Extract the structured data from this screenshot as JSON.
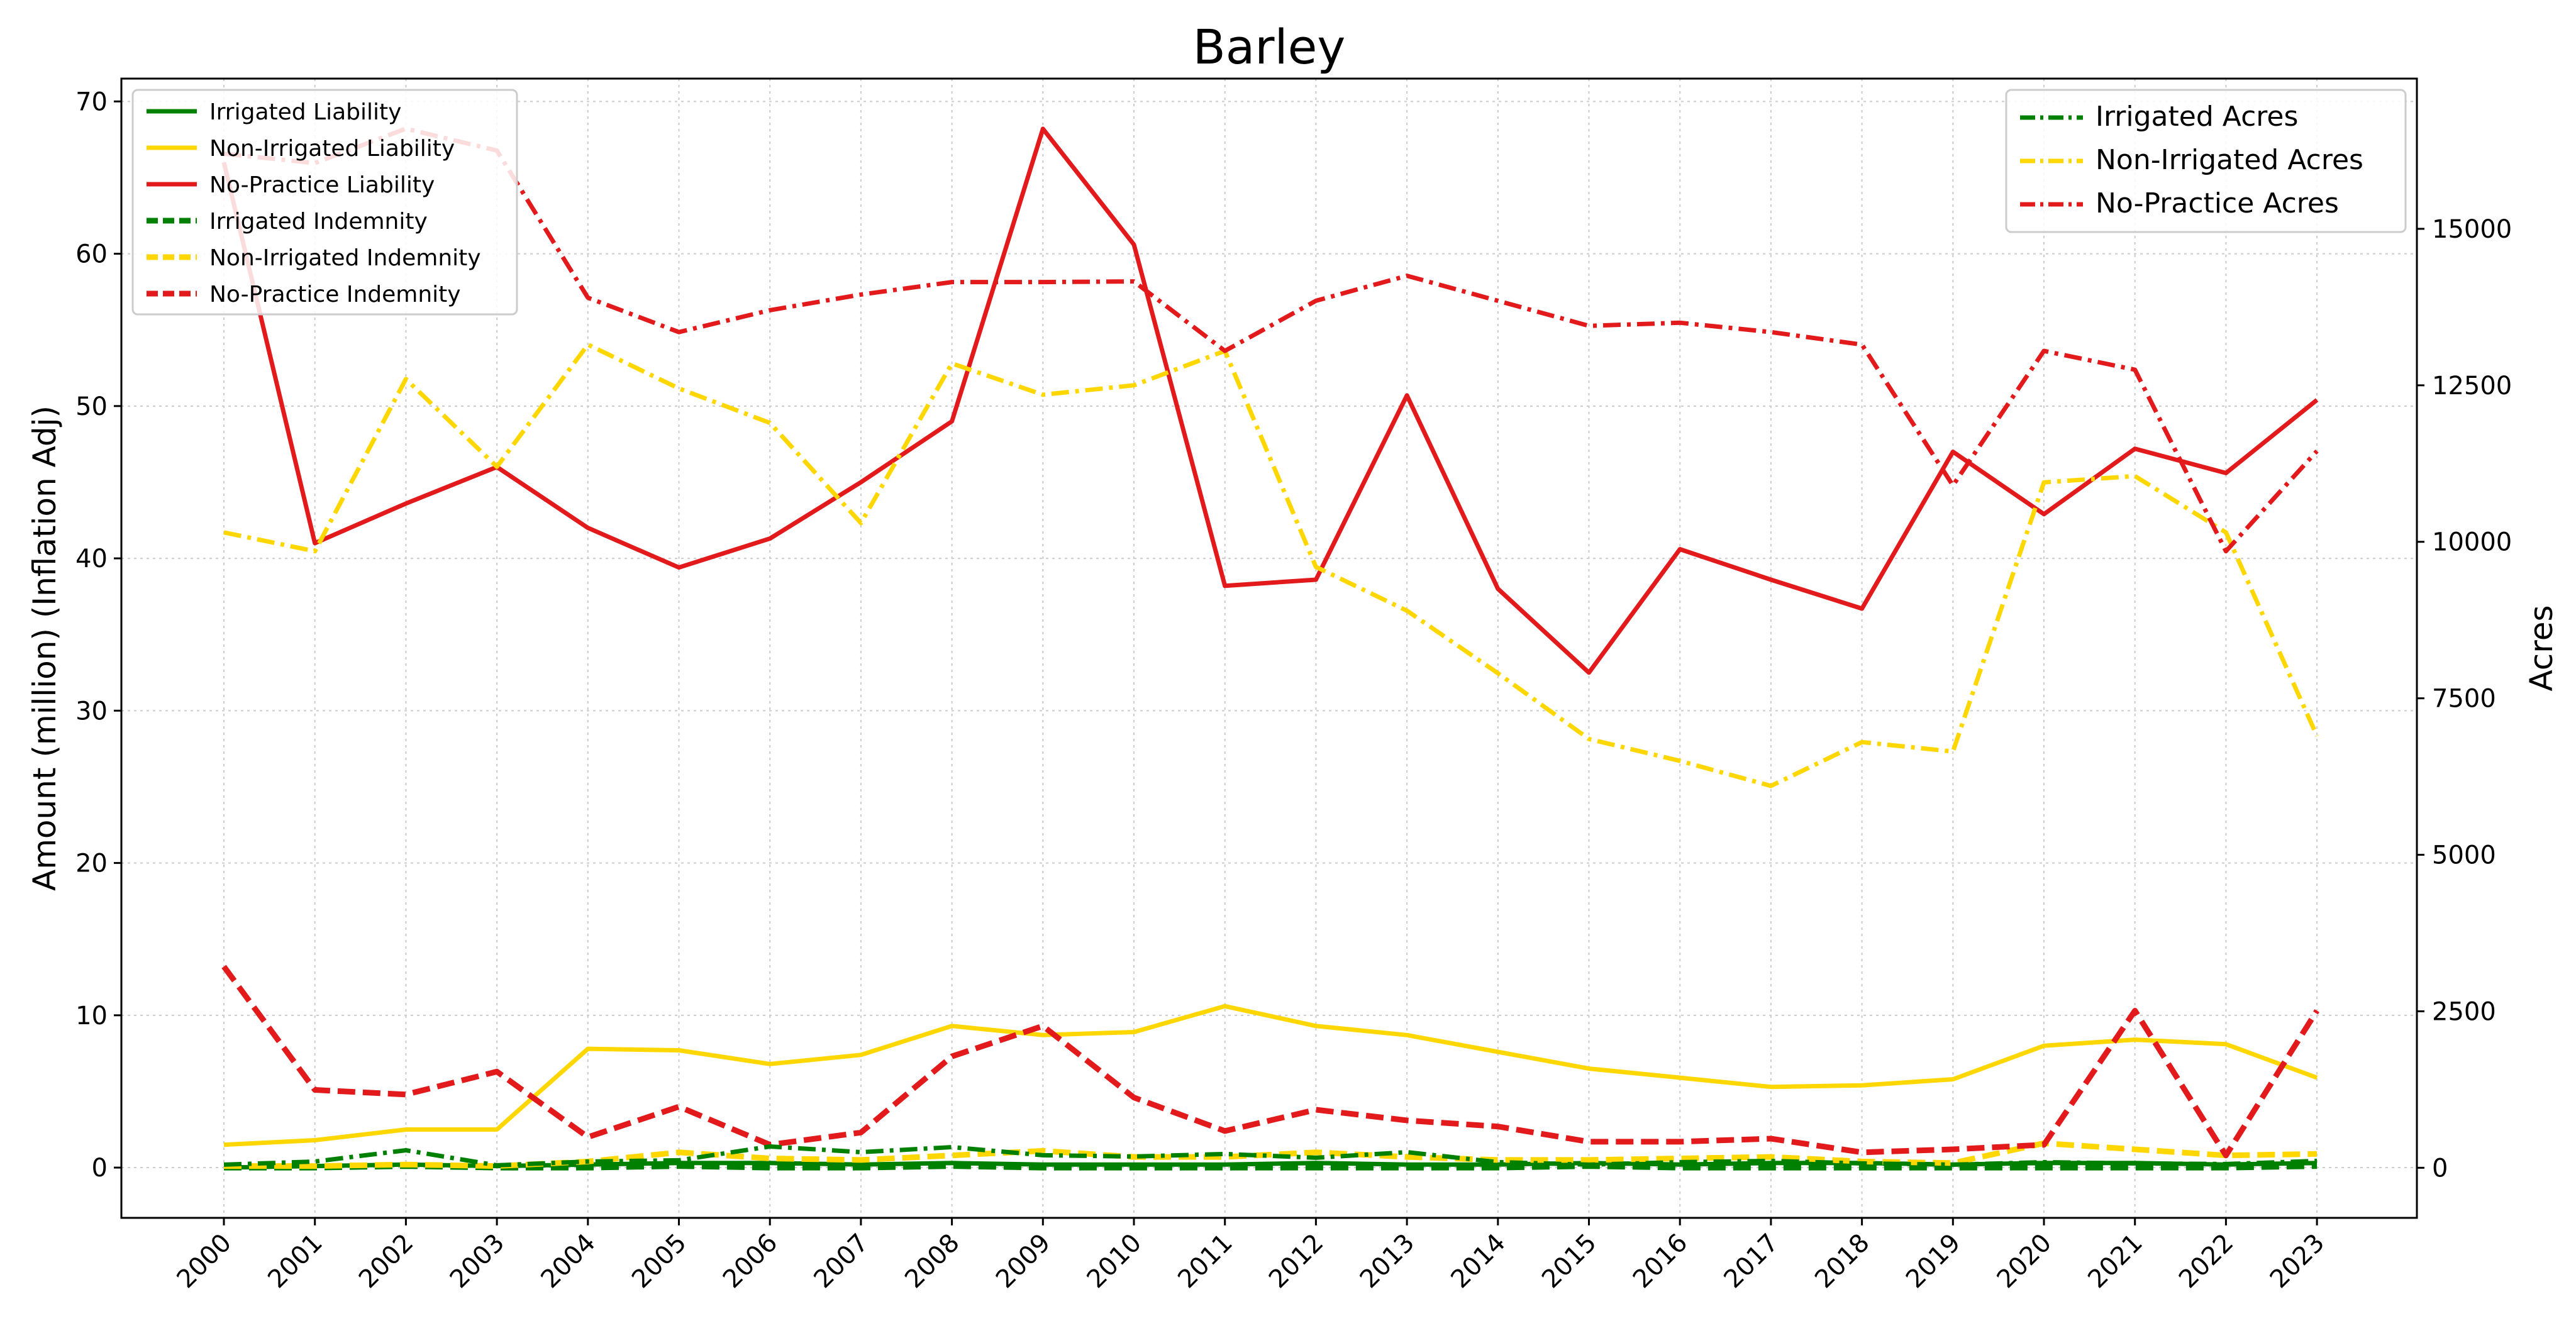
{
  "chart_data": {
    "type": "line",
    "title": "Barley",
    "ylabel_left": "Amount (million) (Inflation Adj)",
    "ylabel_right": "Acres",
    "x": [
      "2000",
      "2001",
      "2002",
      "2003",
      "2004",
      "2005",
      "2006",
      "2007",
      "2008",
      "2009",
      "2010",
      "2011",
      "2012",
      "2013",
      "2014",
      "2015",
      "2016",
      "2017",
      "2018",
      "2019",
      "2020",
      "2021",
      "2022",
      "2023"
    ],
    "ylim_left": [
      -3.3,
      71.5
    ],
    "ylim_right": [
      -800,
      17400
    ],
    "yticks_left": [
      "0",
      "10",
      "20",
      "30",
      "40",
      "50",
      "60",
      "70"
    ],
    "yticks_right": [
      "0",
      "2500",
      "5000",
      "7500",
      "10000",
      "12500",
      "15000"
    ],
    "grid": true,
    "legend_left_position": "top-left",
    "legend_right_position": "top-right",
    "series": [
      {
        "name": "Irrigated Liability",
        "axis": "left",
        "style": "solid",
        "color": "#008000",
        "values": [
          0.0,
          0.1,
          0.2,
          0.1,
          0.2,
          0.3,
          0.3,
          0.2,
          0.3,
          0.2,
          0.2,
          0.2,
          0.3,
          0.2,
          0.2,
          0.3,
          0.2,
          0.3,
          0.3,
          0.2,
          0.3,
          0.3,
          0.2,
          0.3
        ]
      },
      {
        "name": "Non-Irrigated Liability",
        "axis": "left",
        "style": "solid",
        "color": "#FFD700",
        "values": [
          1.5,
          1.8,
          2.5,
          2.5,
          7.8,
          7.7,
          6.8,
          7.4,
          9.3,
          8.7,
          8.9,
          10.6,
          9.3,
          8.7,
          7.6,
          6.5,
          5.9,
          5.3,
          5.4,
          5.8,
          8.0,
          8.4,
          8.1,
          5.9
        ]
      },
      {
        "name": "No-Practice Liability",
        "axis": "left",
        "style": "solid",
        "color": "#E31A1C",
        "values": [
          66.0,
          41.0,
          43.6,
          46.0,
          42.0,
          39.4,
          41.3,
          45.0,
          49.0,
          68.2,
          60.6,
          38.2,
          38.6,
          50.7,
          38.0,
          32.5,
          40.6,
          38.6,
          36.7,
          47.0,
          42.9,
          47.2,
          45.6,
          50.4
        ]
      },
      {
        "name": "Irrigated Indemnity",
        "axis": "left",
        "style": "dashed",
        "color": "#008000",
        "values": [
          0.0,
          0.0,
          0.1,
          0.0,
          0.0,
          0.1,
          0.0,
          0.0,
          0.1,
          0.0,
          0.0,
          0.0,
          0.0,
          0.0,
          0.0,
          0.1,
          0.0,
          0.0,
          0.0,
          0.0,
          0.0,
          0.0,
          0.0,
          0.1
        ]
      },
      {
        "name": "Non-Irrigated Indemnity",
        "axis": "left",
        "style": "dashed",
        "color": "#FFD700",
        "values": [
          0.1,
          0.1,
          0.2,
          0.1,
          0.4,
          1.0,
          0.6,
          0.5,
          0.8,
          1.1,
          0.7,
          0.7,
          1.0,
          0.7,
          0.5,
          0.5,
          0.6,
          0.7,
          0.4,
          0.3,
          1.6,
          1.2,
          0.8,
          0.9
        ]
      },
      {
        "name": "No-Practice Indemnity",
        "axis": "left",
        "style": "dashed",
        "color": "#E31A1C",
        "values": [
          13.2,
          5.1,
          4.8,
          6.3,
          2.0,
          4.0,
          1.5,
          2.3,
          7.3,
          9.3,
          4.6,
          2.4,
          3.8,
          3.1,
          2.7,
          1.7,
          1.7,
          1.9,
          1.0,
          1.2,
          1.5,
          10.3,
          0.8,
          10.3
        ]
      },
      {
        "name": "Irrigated Acres",
        "axis": "right",
        "style": "dashdot",
        "color": "#008000",
        "values": [
          50,
          100,
          280,
          40,
          100,
          120,
          340,
          250,
          330,
          200,
          180,
          220,
          160,
          250,
          90,
          50,
          90,
          110,
          70,
          50,
          90,
          70,
          60,
          110
        ]
      },
      {
        "name": "Non-Irrigated Acres",
        "axis": "right",
        "style": "dashdot",
        "color": "#FFD700",
        "values": [
          10150,
          9850,
          12600,
          11200,
          13150,
          12450,
          11900,
          10300,
          12850,
          12350,
          12500,
          13050,
          9600,
          8900,
          7900,
          6850,
          6500,
          6100,
          6800,
          6650,
          10950,
          11050,
          10150,
          6900
        ]
      },
      {
        "name": "No-Practice Acres",
        "axis": "right",
        "style": "dashdot",
        "color": "#E31A1C",
        "values": [
          16200,
          16050,
          16600,
          16250,
          13900,
          13350,
          13700,
          13950,
          14150,
          14150,
          14160,
          13050,
          13850,
          14250,
          13850,
          13450,
          13500,
          13350,
          13150,
          10900,
          13050,
          12750,
          9850,
          11450
        ]
      }
    ]
  }
}
